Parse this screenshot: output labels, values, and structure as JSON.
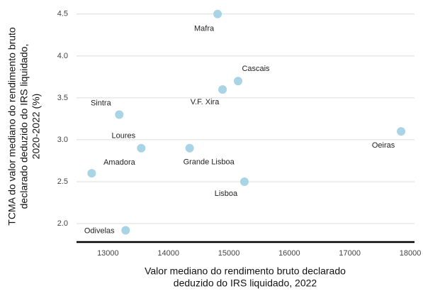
{
  "chart_data": {
    "type": "scatter",
    "labels": [
      "Mafra",
      "Cascais",
      "V.F. Xira",
      "Sintra",
      "Oeiras",
      "Loures",
      "Grande Lisboa",
      "Amadora",
      "Lisboa",
      "Odivelas"
    ],
    "x": [
      14813,
      15152,
      14895,
      13187,
      17848,
      13550,
      14351,
      12731,
      15257,
      13292
    ],
    "values": [
      4.5,
      3.7,
      3.6,
      3.3,
      3.1,
      2.9,
      2.9,
      2.6,
      2.5,
      1.92
    ],
    "color": "#a8d4e6",
    "xlim": [
      12480,
      18070
    ],
    "ylim": [
      1.78,
      4.6
    ],
    "xticks": [
      13000,
      14000,
      15000,
      16000,
      17000,
      18000
    ],
    "yticks": [
      {
        "value": 2,
        "label": "2.0"
      },
      2.5,
      {
        "value": 3,
        "label": "3.0"
      },
      3.5,
      {
        "value": 4,
        "label": "4.0"
      },
      4.5
    ],
    "xlabel": [
      "Valor mediano do rendimento bruto declarado",
      "deduzido do IRS liquidado, 2022"
    ],
    "ylabel": [
      "TCMA do valor mediano do rendimento bruto",
      "declarado deduzido do IRS liquidado,",
      "2020-2022 (%)"
    ],
    "grid": true
  }
}
